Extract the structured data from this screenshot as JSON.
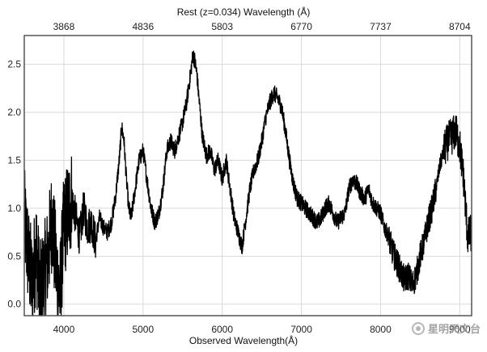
{
  "chart_data": {
    "type": "line",
    "top_axis_label": "Rest (z=0.034) Wavelength (Å)",
    "xlabel": "Observed Wavelength(Å)",
    "ylabel": "",
    "xlim": [
      3500,
      9150
    ],
    "ylim": [
      -0.12,
      2.8
    ],
    "x_ticks": [
      4000,
      5000,
      6000,
      7000,
      8000,
      9000
    ],
    "y_ticks": [
      0.0,
      0.5,
      1.0,
      1.5,
      2.0,
      2.5
    ],
    "x_tick_labels": [
      "4000",
      "5000",
      "6000",
      "7000",
      "8000",
      "9000"
    ],
    "y_tick_labels": [
      "0.0",
      "0.5",
      "1.0",
      "1.5",
      "2.0",
      "2.5"
    ],
    "top_ticks_observed": [
      4000,
      5000,
      6000,
      7000,
      8000,
      9000
    ],
    "top_tick_labels": [
      "3868",
      "4836",
      "5803",
      "6770",
      "7737",
      "8704"
    ],
    "grid": true,
    "series": [
      {
        "color": "#000000",
        "x": [
          3500,
          3550,
          3600,
          3650,
          3700,
          3750,
          3800,
          3850,
          3900,
          3950,
          4000,
          4050,
          4100,
          4150,
          4200,
          4250,
          4300,
          4350,
          4400,
          4450,
          4500,
          4550,
          4600,
          4650,
          4700,
          4730,
          4760,
          4790,
          4820,
          4850,
          4900,
          4950,
          5000,
          5050,
          5100,
          5150,
          5200,
          5250,
          5300,
          5350,
          5400,
          5450,
          5500,
          5550,
          5600,
          5630,
          5650,
          5680,
          5700,
          5750,
          5800,
          5850,
          5900,
          5950,
          6000,
          6050,
          6100,
          6150,
          6200,
          6250,
          6300,
          6350,
          6400,
          6450,
          6500,
          6550,
          6600,
          6650,
          6700,
          6750,
          6800,
          6850,
          6900,
          6950,
          7000,
          7050,
          7100,
          7150,
          7200,
          7250,
          7300,
          7350,
          7400,
          7450,
          7500,
          7550,
          7600,
          7650,
          7700,
          7750,
          7800,
          7850,
          7900,
          7950,
          8000,
          8050,
          8100,
          8150,
          8200,
          8250,
          8300,
          8350,
          8400,
          8450,
          8500,
          8550,
          8600,
          8650,
          8700,
          8750,
          8800,
          8850,
          8900,
          8950,
          9000,
          9050,
          9100,
          9150
        ],
        "y": [
          0.9,
          0.5,
          0.2,
          0.6,
          0.1,
          0.3,
          0.5,
          0.9,
          0.4,
          0.1,
          0.8,
          0.95,
          1.1,
          0.9,
          0.7,
          1.0,
          0.8,
          0.85,
          0.65,
          0.9,
          0.8,
          0.75,
          0.85,
          1.1,
          1.5,
          1.85,
          1.7,
          1.3,
          1.0,
          0.9,
          1.2,
          1.5,
          1.6,
          1.3,
          1.0,
          0.85,
          0.95,
          1.2,
          1.6,
          1.7,
          1.6,
          1.75,
          1.9,
          2.1,
          2.4,
          2.6,
          2.55,
          2.4,
          2.2,
          1.75,
          1.55,
          1.6,
          1.4,
          1.5,
          1.3,
          1.5,
          1.2,
          0.9,
          0.75,
          0.6,
          0.9,
          1.2,
          1.4,
          1.5,
          1.7,
          1.95,
          2.1,
          2.2,
          2.15,
          2.05,
          1.8,
          1.5,
          1.25,
          1.1,
          1.05,
          1.0,
          0.95,
          0.9,
          0.85,
          0.9,
          1.0,
          1.05,
          0.95,
          0.85,
          0.9,
          0.95,
          1.2,
          1.3,
          1.25,
          1.15,
          1.1,
          1.2,
          1.05,
          1.0,
          0.95,
          0.8,
          0.7,
          0.55,
          0.45,
          0.35,
          0.25,
          0.3,
          0.2,
          0.3,
          0.5,
          0.65,
          0.85,
          1.0,
          1.2,
          1.45,
          1.6,
          1.7,
          1.75,
          1.8,
          1.65,
          1.3,
          0.7,
          0.75
        ]
      }
    ]
  },
  "watermark": {
    "text": "星明天文台"
  }
}
